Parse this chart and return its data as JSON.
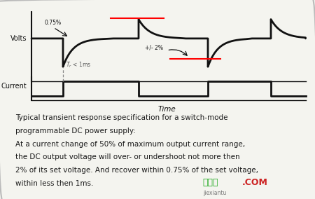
{
  "bg_color": "#f4f4ef",
  "border_color": "#bbbbbb",
  "text_color": "#1a1a1a",
  "description_lines": [
    "Typical transient response specification for a switch-mode",
    "programmable DC power supply:",
    "At a current change of 50% of maximum output current range,",
    "the DC output voltage will over- or undershoot not more then",
    "2% of its set voltage. And recover within 0.75% of the set voltage,",
    "within less then 1ms."
  ],
  "watermark_text": "接线图",
  "watermark_sub": "jiexiantu",
  "watermark_com": ".COM",
  "volt_nom": 7.5,
  "volt_drop": 4.8,
  "volt_over": 9.6,
  "curr_low": 1.2,
  "curr_high": 2.8
}
